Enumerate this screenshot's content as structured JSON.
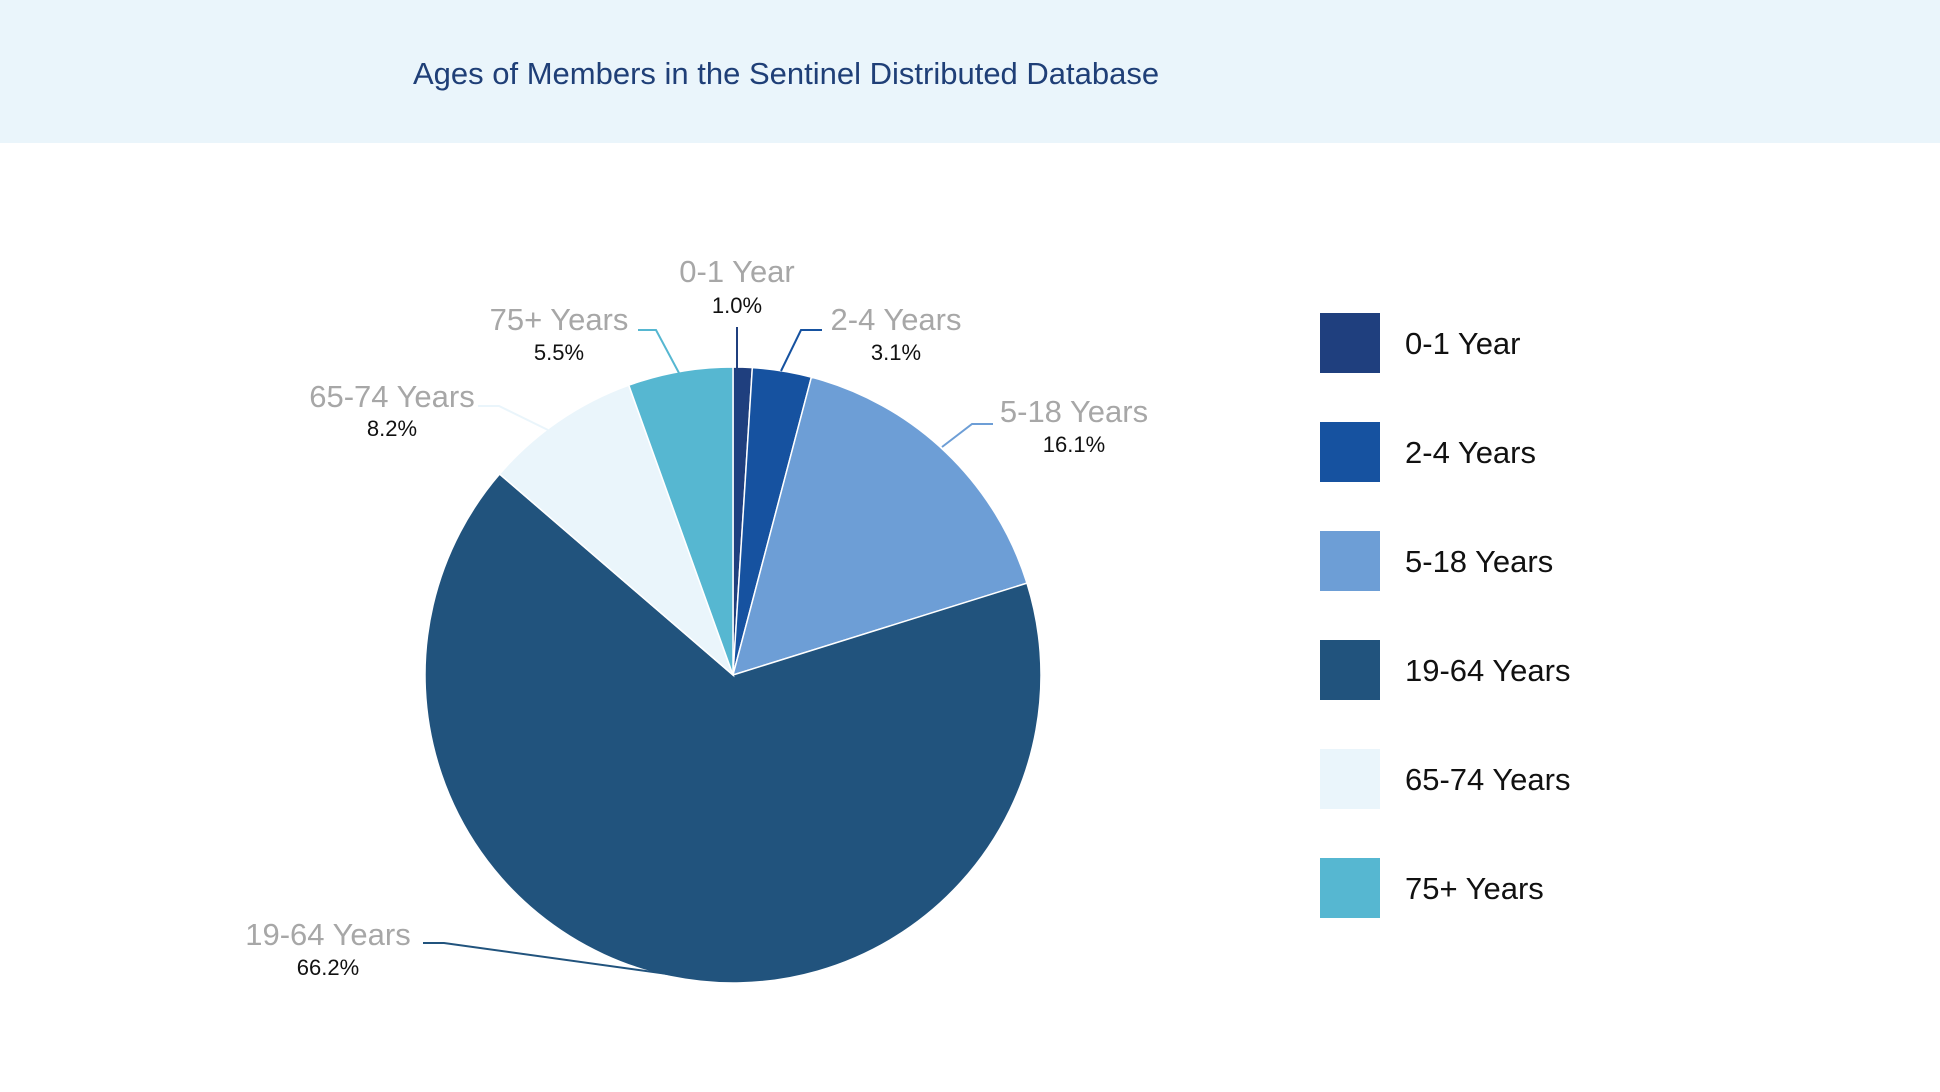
{
  "chart_data": {
    "type": "pie",
    "title": "Ages of Members in the Sentinel Distributed Database",
    "categories": [
      "0-1 Year",
      "2-4 Years",
      "5-18 Years",
      "19-64 Years",
      "65-74 Years",
      "75+ Years"
    ],
    "values": [
      1.0,
      3.1,
      16.1,
      66.2,
      8.2,
      5.5
    ],
    "value_labels": [
      "1.0%",
      "3.1%",
      "16.1%",
      "66.2%",
      "8.2%",
      "5.5%"
    ],
    "colors": [
      "#1f3f7e",
      "#1652a0",
      "#6d9ed6",
      "#21537d",
      "#eaf5fb",
      "#56b7d1"
    ],
    "start_angle_deg": 0,
    "direction": "clockwise",
    "legend": "right"
  }
}
